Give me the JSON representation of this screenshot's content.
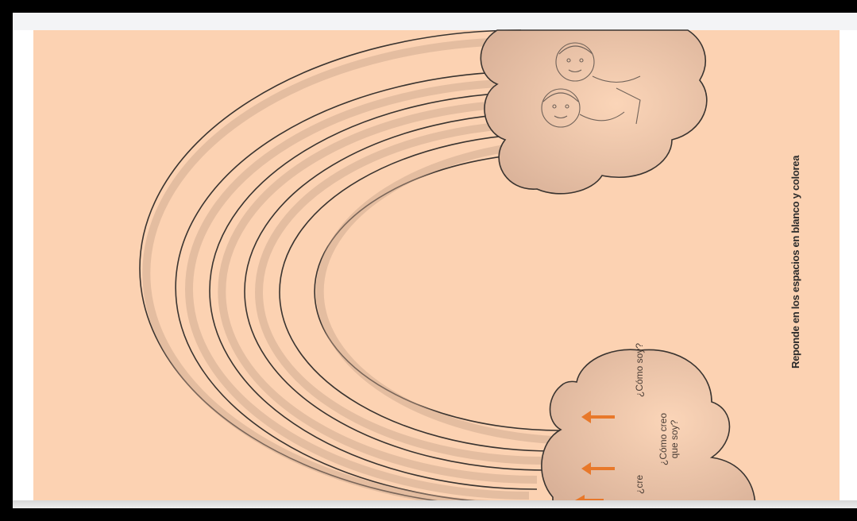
{
  "worksheet": {
    "instruction": "Reponde en los espacios en blanco y colorea",
    "clouds": {
      "como_soy": "¿Cómo soy?",
      "como_creo_line1": "¿Cómo creo",
      "como_creo_line2": "que soy?",
      "partial": "¿cre"
    }
  },
  "colors": {
    "page_background": "#fcd2b2",
    "line": "#3a3430",
    "arrow": "#e8782a"
  }
}
